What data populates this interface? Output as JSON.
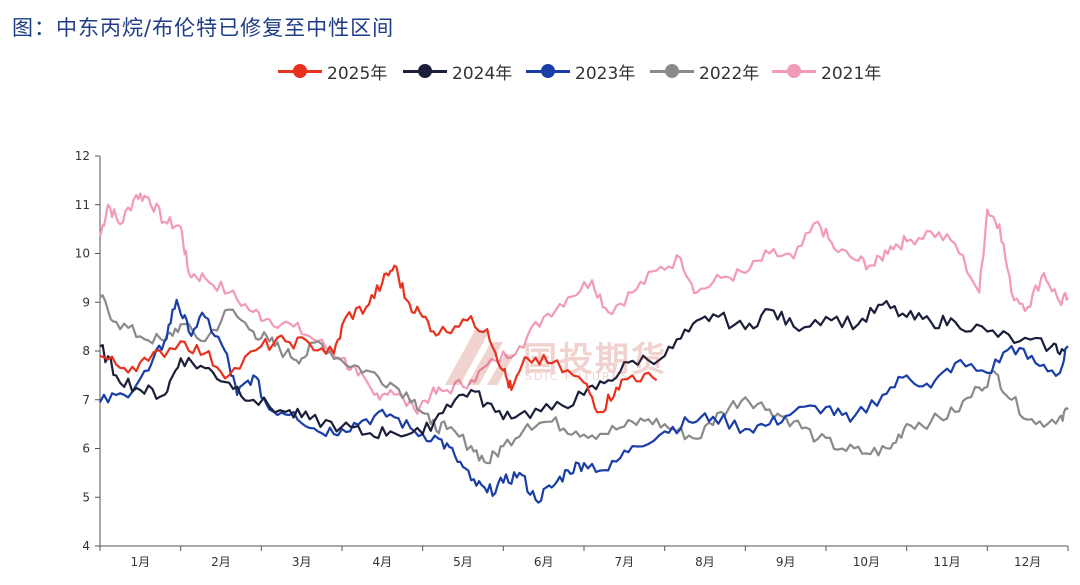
{
  "title": "图：中东丙烷/布伦特已修复至中性区间",
  "watermark": {
    "main": "国投期货",
    "sub": "SDIC FUTURES"
  },
  "chart_data": {
    "type": "line",
    "title": "图：中东丙烷/布伦特已修复至中性区间",
    "xlabel": "",
    "ylabel": "",
    "ylim": [
      4,
      12
    ],
    "yticks": [
      4,
      5,
      6,
      7,
      8,
      9,
      10,
      11,
      12
    ],
    "months": [
      "1月",
      "2月",
      "3月",
      "4月",
      "5月",
      "6月",
      "7月",
      "8月",
      "9月",
      "10月",
      "11月",
      "12月"
    ],
    "x_unit": "month index (1 = start of 1月, 13 = end of 12月)",
    "xlim": [
      1,
      13
    ],
    "grid": false,
    "legend_position": "top",
    "series": [
      {
        "name": "2025年",
        "color": "#e8321e",
        "points": [
          [
            1.0,
            7.9
          ],
          [
            1.3,
            7.65
          ],
          [
            1.6,
            7.8
          ],
          [
            2.0,
            8.2
          ],
          [
            2.3,
            7.95
          ],
          [
            2.6,
            7.5
          ],
          [
            3.0,
            8.1
          ],
          [
            3.3,
            8.2
          ],
          [
            3.6,
            8.15
          ],
          [
            3.9,
            7.95
          ],
          [
            4.05,
            8.7
          ],
          [
            4.3,
            8.9
          ],
          [
            4.5,
            9.4
          ],
          [
            4.65,
            9.75
          ],
          [
            4.8,
            9.05
          ],
          [
            5.0,
            8.7
          ],
          [
            5.2,
            8.35
          ],
          [
            5.5,
            8.65
          ],
          [
            5.8,
            8.45
          ],
          [
            6.0,
            7.6
          ],
          [
            6.1,
            7.2
          ],
          [
            6.3,
            7.85
          ],
          [
            6.6,
            7.75
          ],
          [
            7.0,
            7.35
          ],
          [
            7.2,
            6.75
          ],
          [
            7.4,
            7.25
          ],
          [
            7.6,
            7.5
          ],
          [
            7.9,
            7.4
          ]
        ]
      },
      {
        "name": "2024年",
        "color": "#1c1f3a",
        "points": [
          [
            1.0,
            8.1
          ],
          [
            1.2,
            7.5
          ],
          [
            1.5,
            7.2
          ],
          [
            1.8,
            7.1
          ],
          [
            2.0,
            7.85
          ],
          [
            2.3,
            7.65
          ],
          [
            2.6,
            7.35
          ],
          [
            2.9,
            7.0
          ],
          [
            3.3,
            6.75
          ],
          [
            3.6,
            6.6
          ],
          [
            4.0,
            6.45
          ],
          [
            4.3,
            6.3
          ],
          [
            4.6,
            6.35
          ],
          [
            5.0,
            6.3
          ],
          [
            5.3,
            6.9
          ],
          [
            5.6,
            7.2
          ],
          [
            5.9,
            6.75
          ],
          [
            6.2,
            6.7
          ],
          [
            6.6,
            6.8
          ],
          [
            7.0,
            7.1
          ],
          [
            7.3,
            7.4
          ],
          [
            7.6,
            7.8
          ],
          [
            8.0,
            7.9
          ],
          [
            8.3,
            8.4
          ],
          [
            8.6,
            8.75
          ],
          [
            9.0,
            8.45
          ],
          [
            9.3,
            8.85
          ],
          [
            9.6,
            8.5
          ],
          [
            10.0,
            8.7
          ],
          [
            10.4,
            8.55
          ],
          [
            10.7,
            8.95
          ],
          [
            11.0,
            8.7
          ],
          [
            11.3,
            8.6
          ],
          [
            11.6,
            8.6
          ],
          [
            12.0,
            8.4
          ],
          [
            12.4,
            8.2
          ],
          [
            12.8,
            8.1
          ],
          [
            12.95,
            8.0
          ]
        ]
      },
      {
        "name": "2023年",
        "color": "#1a3ea8",
        "points": [
          [
            1.0,
            6.95
          ],
          [
            1.3,
            7.1
          ],
          [
            1.6,
            7.6
          ],
          [
            1.8,
            8.2
          ],
          [
            1.95,
            9.05
          ],
          [
            2.1,
            8.4
          ],
          [
            2.3,
            8.7
          ],
          [
            2.55,
            8.0
          ],
          [
            2.7,
            7.1
          ],
          [
            2.9,
            7.5
          ],
          [
            3.1,
            6.8
          ],
          [
            3.4,
            6.75
          ],
          [
            3.7,
            6.35
          ],
          [
            4.0,
            6.4
          ],
          [
            4.3,
            6.6
          ],
          [
            4.6,
            6.7
          ],
          [
            4.9,
            6.35
          ],
          [
            5.2,
            6.2
          ],
          [
            5.4,
            5.85
          ],
          [
            5.6,
            5.35
          ],
          [
            5.8,
            5.1
          ],
          [
            6.0,
            5.3
          ],
          [
            6.2,
            5.5
          ],
          [
            6.4,
            4.95
          ],
          [
            6.6,
            5.2
          ],
          [
            6.8,
            5.55
          ],
          [
            7.0,
            5.7
          ],
          [
            7.3,
            5.55
          ],
          [
            7.6,
            6.05
          ],
          [
            8.0,
            6.35
          ],
          [
            8.3,
            6.55
          ],
          [
            8.6,
            6.65
          ],
          [
            9.0,
            6.4
          ],
          [
            9.3,
            6.5
          ],
          [
            9.6,
            6.75
          ],
          [
            10.0,
            6.85
          ],
          [
            10.3,
            6.55
          ],
          [
            10.7,
            7.1
          ],
          [
            11.0,
            7.5
          ],
          [
            11.3,
            7.25
          ],
          [
            11.6,
            7.75
          ],
          [
            12.0,
            7.55
          ],
          [
            12.3,
            8.1
          ],
          [
            12.6,
            7.75
          ],
          [
            12.9,
            7.55
          ],
          [
            13.0,
            8.1
          ]
        ]
      },
      {
        "name": "2022年",
        "color": "#8a8a8a",
        "points": [
          [
            1.0,
            9.1
          ],
          [
            1.2,
            8.6
          ],
          [
            1.5,
            8.3
          ],
          [
            1.8,
            8.2
          ],
          [
            2.0,
            8.55
          ],
          [
            2.3,
            8.2
          ],
          [
            2.6,
            8.85
          ],
          [
            2.9,
            8.4
          ],
          [
            3.1,
            8.2
          ],
          [
            3.3,
            7.95
          ],
          [
            3.5,
            7.85
          ],
          [
            3.7,
            8.2
          ],
          [
            4.0,
            7.8
          ],
          [
            4.3,
            7.6
          ],
          [
            4.6,
            7.35
          ],
          [
            4.9,
            7.0
          ],
          [
            5.1,
            6.5
          ],
          [
            5.3,
            6.4
          ],
          [
            5.6,
            6.05
          ],
          [
            5.8,
            5.7
          ],
          [
            6.0,
            6.05
          ],
          [
            6.3,
            6.5
          ],
          [
            6.6,
            6.55
          ],
          [
            6.9,
            6.35
          ],
          [
            7.2,
            6.3
          ],
          [
            7.5,
            6.45
          ],
          [
            7.8,
            6.6
          ],
          [
            8.1,
            6.4
          ],
          [
            8.4,
            6.2
          ],
          [
            8.7,
            6.75
          ],
          [
            9.0,
            7.05
          ],
          [
            9.3,
            6.8
          ],
          [
            9.6,
            6.55
          ],
          [
            9.9,
            6.2
          ],
          [
            10.2,
            6.0
          ],
          [
            10.5,
            5.9
          ],
          [
            10.8,
            6.0
          ],
          [
            11.0,
            6.5
          ],
          [
            11.3,
            6.55
          ],
          [
            11.6,
            6.75
          ],
          [
            11.9,
            7.25
          ],
          [
            12.1,
            7.55
          ],
          [
            12.3,
            7.0
          ],
          [
            12.6,
            6.5
          ],
          [
            12.9,
            6.65
          ],
          [
            13.0,
            6.8
          ]
        ]
      },
      {
        "name": "2021年",
        "color": "#f29ab6",
        "points": [
          [
            1.0,
            10.35
          ],
          [
            1.1,
            11.0
          ],
          [
            1.25,
            10.6
          ],
          [
            1.45,
            11.2
          ],
          [
            1.6,
            11.15
          ],
          [
            1.8,
            10.65
          ],
          [
            2.0,
            10.55
          ],
          [
            2.1,
            9.6
          ],
          [
            2.3,
            9.5
          ],
          [
            2.6,
            9.2
          ],
          [
            2.9,
            8.8
          ],
          [
            3.1,
            8.65
          ],
          [
            3.4,
            8.5
          ],
          [
            3.7,
            8.2
          ],
          [
            4.0,
            7.85
          ],
          [
            4.2,
            7.5
          ],
          [
            4.4,
            7.1
          ],
          [
            4.6,
            7.2
          ],
          [
            4.9,
            6.8
          ],
          [
            5.1,
            7.1
          ],
          [
            5.3,
            7.2
          ],
          [
            5.6,
            7.4
          ],
          [
            5.9,
            7.8
          ],
          [
            6.2,
            8.1
          ],
          [
            6.5,
            8.7
          ],
          [
            6.8,
            9.1
          ],
          [
            7.1,
            9.45
          ],
          [
            7.3,
            8.8
          ],
          [
            7.6,
            9.2
          ],
          [
            7.9,
            9.65
          ],
          [
            8.2,
            9.9
          ],
          [
            8.4,
            9.2
          ],
          [
            8.7,
            9.5
          ],
          [
            9.0,
            9.6
          ],
          [
            9.3,
            10.0
          ],
          [
            9.6,
            9.9
          ],
          [
            9.9,
            10.65
          ],
          [
            10.1,
            10.1
          ],
          [
            10.4,
            9.85
          ],
          [
            10.6,
            9.75
          ],
          [
            10.8,
            10.15
          ],
          [
            11.0,
            10.25
          ],
          [
            11.3,
            10.45
          ],
          [
            11.6,
            10.2
          ],
          [
            11.9,
            9.2
          ],
          [
            12.0,
            10.9
          ],
          [
            12.15,
            10.6
          ],
          [
            12.3,
            9.2
          ],
          [
            12.5,
            8.9
          ],
          [
            12.7,
            9.6
          ],
          [
            12.9,
            9.0
          ],
          [
            13.0,
            9.1
          ]
        ]
      }
    ]
  }
}
